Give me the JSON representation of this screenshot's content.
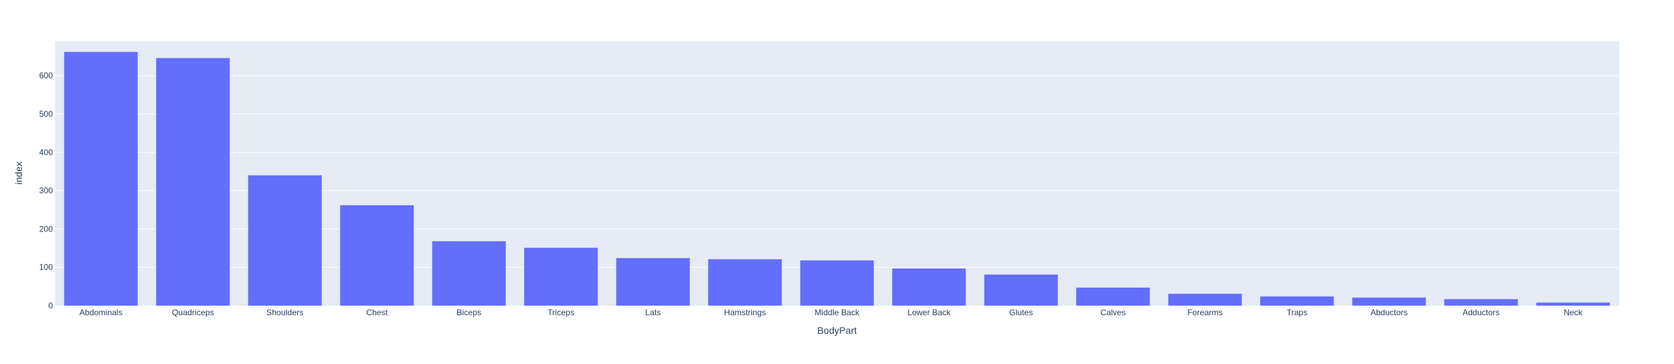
{
  "chart_data": {
    "type": "bar",
    "title": "",
    "xlabel": "BodyPart",
    "ylabel": "index",
    "ylim": [
      0,
      690
    ],
    "yticks": [
      0,
      100,
      200,
      300,
      400,
      500,
      600
    ],
    "grid": true,
    "colors": {
      "bar": "#636efa",
      "plot_bg": "#e5ecf6",
      "grid": "#ffffff",
      "text": "#2a3f5f"
    },
    "categories": [
      "Abdominals",
      "Quadriceps",
      "Shoulders",
      "Chest",
      "Biceps",
      "Triceps",
      "Lats",
      "Hamstrings",
      "Middle Back",
      "Lower Back",
      "Glutes",
      "Calves",
      "Forearms",
      "Traps",
      "Abductors",
      "Adductors",
      "Neck"
    ],
    "values": [
      662,
      646,
      340,
      262,
      168,
      151,
      124,
      121,
      118,
      97,
      81,
      47,
      31,
      24,
      21,
      17,
      8
    ]
  }
}
